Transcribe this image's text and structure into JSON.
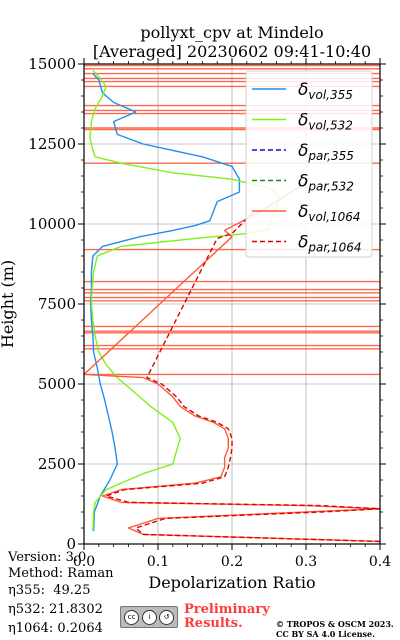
{
  "chart_data": {
    "type": "line",
    "title_line1": "pollyxt_cpv at Mindelo",
    "title_line2": "[Averaged] 20230602 09:41-10:40",
    "xlabel": "Depolarization Ratio",
    "ylabel": "Height (m)",
    "xlim": [
      0.0,
      0.4
    ],
    "ylim": [
      0,
      15000
    ],
    "x_ticks": [
      "0.0",
      "0.1",
      "0.2",
      "0.3",
      "0.4"
    ],
    "y_ticks": [
      "0",
      "2500",
      "5000",
      "7500",
      "10000",
      "12500",
      "15000"
    ],
    "grid": true,
    "legend_position": "top-right",
    "series": [
      {
        "name": "δvol,355",
        "legend_main": "δ",
        "legend_sub": "vol,355",
        "color": "#1f8ff0",
        "dash": "solid",
        "points": [
          [
            0.013,
            400
          ],
          [
            0.014,
            1000
          ],
          [
            0.022,
            1500
          ],
          [
            0.035,
            2000
          ],
          [
            0.045,
            2500
          ],
          [
            0.042,
            3000
          ],
          [
            0.038,
            3500
          ],
          [
            0.033,
            4000
          ],
          [
            0.028,
            4500
          ],
          [
            0.022,
            5000
          ],
          [
            0.018,
            5500
          ],
          [
            0.013,
            6000
          ],
          [
            0.012,
            6500
          ],
          [
            0.01,
            7000
          ],
          [
            0.009,
            7500
          ],
          [
            0.01,
            8000
          ],
          [
            0.01,
            8500
          ],
          [
            0.012,
            9000
          ],
          [
            0.025,
            9300
          ],
          [
            0.075,
            9600
          ],
          [
            0.12,
            9800
          ],
          [
            0.15,
            9950
          ],
          [
            0.17,
            10100
          ],
          [
            0.175,
            10400
          ],
          [
            0.18,
            10700
          ],
          [
            0.21,
            11000
          ],
          [
            0.21,
            11400
          ],
          [
            0.2,
            11800
          ],
          [
            0.16,
            12100
          ],
          [
            0.12,
            12300
          ],
          [
            0.08,
            12500
          ],
          [
            0.045,
            12800
          ],
          [
            0.04,
            13200
          ],
          [
            0.07,
            13500
          ],
          [
            0.04,
            13800
          ],
          [
            0.025,
            14100
          ],
          [
            0.02,
            14500
          ],
          [
            0.012,
            14700
          ]
        ]
      },
      {
        "name": "δvol,532",
        "legend_main": "δ",
        "legend_sub": "vol,532",
        "color": "#7ef01a",
        "dash": "solid",
        "points": [
          [
            0.012,
            400
          ],
          [
            0.013,
            1000
          ],
          [
            0.015,
            1300
          ],
          [
            0.03,
            1700
          ],
          [
            0.08,
            2200
          ],
          [
            0.12,
            2500
          ],
          [
            0.125,
            2900
          ],
          [
            0.13,
            3300
          ],
          [
            0.12,
            3800
          ],
          [
            0.09,
            4300
          ],
          [
            0.065,
            4800
          ],
          [
            0.045,
            5200
          ],
          [
            0.03,
            5600
          ],
          [
            0.02,
            6000
          ],
          [
            0.015,
            6500
          ],
          [
            0.012,
            7000
          ],
          [
            0.01,
            7500
          ],
          [
            0.011,
            8000
          ],
          [
            0.013,
            8500
          ],
          [
            0.018,
            9000
          ],
          [
            0.05,
            9300
          ],
          [
            0.15,
            9550
          ],
          [
            0.22,
            9700
          ],
          [
            0.25,
            9850
          ],
          [
            0.255,
            10300
          ],
          [
            0.265,
            10800
          ],
          [
            0.255,
            11100
          ],
          [
            0.2,
            11400
          ],
          [
            0.12,
            11600
          ],
          [
            0.05,
            11900
          ],
          [
            0.015,
            12100
          ],
          [
            0.012,
            12300
          ],
          [
            0.008,
            12700
          ],
          [
            0.01,
            13200
          ],
          [
            0.015,
            13600
          ],
          [
            0.025,
            14000
          ],
          [
            0.03,
            14300
          ],
          [
            0.02,
            14600
          ],
          [
            0.012,
            14800
          ]
        ]
      },
      {
        "name": "δpar,355",
        "legend_main": "δ",
        "legend_sub": "par,355",
        "color": "#1010d0",
        "dash": "dashed",
        "points": []
      },
      {
        "name": "δpar,532",
        "legend_main": "δ",
        "legend_sub": "par,532",
        "color": "#148a14",
        "dash": "dashed",
        "points": []
      },
      {
        "name": "δvol,1064",
        "legend_main": "δ",
        "legend_sub": "vol,1064",
        "color": "#ff5a3a",
        "dash": "solid",
        "points": [
          [
            0.4,
            80
          ],
          [
            0.08,
            300
          ],
          [
            0.06,
            500
          ],
          [
            0.1,
            800
          ],
          [
            0.3,
            1000
          ],
          [
            0.4,
            1100
          ],
          [
            0.3,
            1200
          ],
          [
            0.05,
            1300
          ],
          [
            0.025,
            1500
          ],
          [
            0.05,
            1700
          ],
          [
            0.15,
            1900
          ],
          [
            0.185,
            2100
          ],
          [
            0.19,
            2400
          ],
          [
            0.19,
            2700
          ],
          [
            0.195,
            3000
          ],
          [
            0.195,
            3300
          ],
          [
            0.19,
            3600
          ],
          [
            0.175,
            3800
          ],
          [
            0.15,
            4000
          ],
          [
            0.13,
            4300
          ],
          [
            0.12,
            4600
          ],
          [
            0.1,
            5000
          ],
          [
            0.08,
            5200
          ],
          [
            0.0,
            5300
          ],
          [
            0.2,
            9600
          ],
          [
            0.19,
            9800
          ],
          [
            0.24,
            10400
          ],
          [
            0.26,
            10700
          ],
          [
            0.3,
            11300
          ]
        ]
      },
      {
        "name": "δpar,1064",
        "legend_main": "δ",
        "legend_sub": "par,1064",
        "color": "#dd0000",
        "dash": "dashed",
        "points": [
          [
            0.4,
            80
          ],
          [
            0.08,
            300
          ],
          [
            0.07,
            500
          ],
          [
            0.11,
            800
          ],
          [
            0.32,
            1000
          ],
          [
            0.4,
            1100
          ],
          [
            0.32,
            1200
          ],
          [
            0.06,
            1300
          ],
          [
            0.03,
            1500
          ],
          [
            0.055,
            1700
          ],
          [
            0.16,
            1900
          ],
          [
            0.19,
            2100
          ],
          [
            0.195,
            2400
          ],
          [
            0.198,
            2700
          ],
          [
            0.2,
            3000
          ],
          [
            0.2,
            3300
          ],
          [
            0.195,
            3600
          ],
          [
            0.18,
            3800
          ],
          [
            0.155,
            4000
          ],
          [
            0.135,
            4300
          ],
          [
            0.125,
            4600
          ],
          [
            0.105,
            5000
          ],
          [
            0.085,
            5200
          ],
          [
            0.18,
            9550
          ],
          [
            0.2,
            9700
          ],
          [
            0.23,
            10400
          ]
        ]
      }
    ],
    "noise_heights": [
      5300,
      6100,
      6200,
      6600,
      6650,
      6800,
      7600,
      7700,
      7850,
      7950,
      8200,
      9200,
      11900,
      12950,
      13000,
      13450,
      13550,
      13700,
      14300,
      14450,
      14550,
      14700,
      14850,
      14950
    ]
  },
  "info": {
    "version": "Version: 3.0",
    "method": "Raman",
    "method_prefix": "Method: ",
    "eta355": "η355:  49.25",
    "eta532": "η532: 21.8302",
    "eta1064": "η1064: 0.2064"
  },
  "footer": {
    "preliminary_line1": "Preliminary",
    "preliminary_line2": "Results.",
    "copyright_line1": "© TROPOS & OSCM 2023.",
    "copyright_line2": "CC BY SA 4.0 License.",
    "cc_badge_text": "BY SA"
  }
}
